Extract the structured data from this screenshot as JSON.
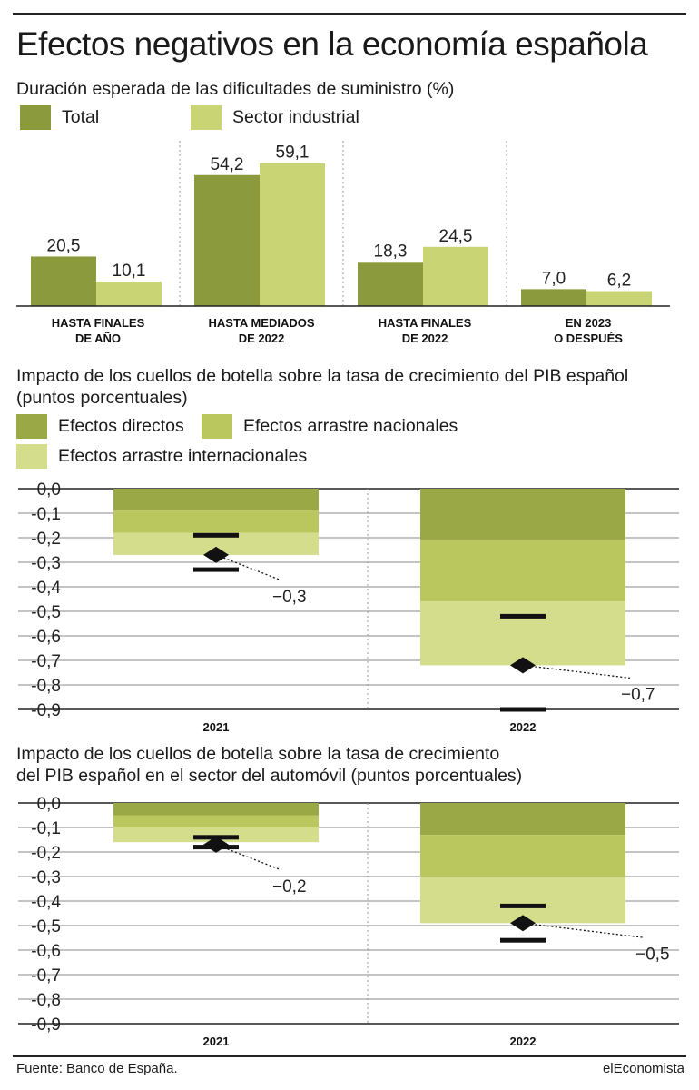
{
  "title": "Efectos negativos en la economía española",
  "colors": {
    "dark": "#8c9a3e",
    "mid": "#b5c45a",
    "light": "#d3dd8c",
    "marker": "#111111"
  },
  "footer": {
    "source": "Fuente: Banco de España.",
    "brand": "elEconomista"
  },
  "chart_data": [
    {
      "type": "bar",
      "title": "Duración esperada de las dificultades de suministro (%)",
      "categories": [
        [
          "HASTA FINALES",
          "DE AÑO"
        ],
        [
          "HASTA MEDIADOS",
          "DE 2022"
        ],
        [
          "HASTA FINALES",
          "DE 2022"
        ],
        [
          "EN 2023",
          "O DESPUÉS"
        ]
      ],
      "series": [
        {
          "name": "Total",
          "values": [
            20.5,
            54.2,
            18.3,
            7.0
          ],
          "labels": [
            "20,5",
            "54,2",
            "18,3",
            "7,0"
          ],
          "color": "#8c9a3e"
        },
        {
          "name": "Sector industrial",
          "values": [
            10.1,
            59.1,
            24.5,
            6.2
          ],
          "labels": [
            "10,1",
            "59,1",
            "24,5",
            "6,2"
          ],
          "color": "#c9d574"
        }
      ],
      "ylim": [
        0,
        62
      ]
    },
    {
      "type": "bar",
      "stacked": true,
      "title": "Impacto de los cuellos de botella sobre la tasa de crecimiento del PIB español (puntos porcentuales)",
      "categories": [
        "2021",
        "2022"
      ],
      "series": [
        {
          "name": "Efectos directos",
          "values": [
            -0.09,
            -0.21
          ],
          "color": "#9aa845"
        },
        {
          "name": "Efectos arrastre nacionales",
          "values": [
            -0.09,
            -0.25
          ],
          "color": "#b9c75e"
        },
        {
          "name": "Efectos arrastre internacionales",
          "values": [
            -0.09,
            -0.26
          ],
          "color": "#d3dd8c"
        }
      ],
      "totals": {
        "values": [
          -0.27,
          -0.72
        ],
        "labels": [
          "−0,3",
          "−0,7"
        ]
      },
      "range_marks": {
        "upper": [
          -0.19,
          -0.52
        ],
        "lower": [
          -0.33,
          -0.9
        ]
      },
      "yticks": [
        "0,0",
        "-0,1",
        "-0,2",
        "-0,3",
        "-0,4",
        "-0,5",
        "-0,6",
        "-0,7",
        "-0,8",
        "-0,9"
      ],
      "ylim": [
        -0.9,
        0.0
      ]
    },
    {
      "type": "bar",
      "stacked": true,
      "title": "Impacto de los cuellos de botella sobre la tasa de crecimiento del PIB español en el sector del automóvil (puntos porcentuales)",
      "categories": [
        "2021",
        "2022"
      ],
      "series": [
        {
          "name": "Efectos directos",
          "values": [
            -0.05,
            -0.13
          ],
          "color": "#9aa845"
        },
        {
          "name": "Efectos arrastre nacionales",
          "values": [
            -0.05,
            -0.17
          ],
          "color": "#b9c75e"
        },
        {
          "name": "Efectos arrastre internacionales",
          "values": [
            -0.06,
            -0.19
          ],
          "color": "#d3dd8c"
        }
      ],
      "totals": {
        "values": [
          -0.17,
          -0.49
        ],
        "labels": [
          "−0,2",
          "−0,5"
        ]
      },
      "range_marks": {
        "upper": [
          -0.14,
          -0.42
        ],
        "lower": [
          -0.18,
          -0.56
        ]
      },
      "yticks": [
        "0,0",
        "-0,1",
        "-0,2",
        "-0,3",
        "-0,4",
        "-0,5",
        "-0,6",
        "-0,7",
        "-0,8",
        "-0,9"
      ],
      "ylim": [
        -0.9,
        0.0
      ]
    }
  ],
  "chart2_title_lines": [
    "Impacto de los cuellos de botella sobre la tasa de crecimiento del PIB español",
    "(puntos porcentuales)"
  ],
  "chart3_title_lines": [
    "Impacto de los cuellos de botella sobre la tasa de crecimiento",
    "del PIB español en el sector del automóvil (puntos porcentuales)"
  ]
}
